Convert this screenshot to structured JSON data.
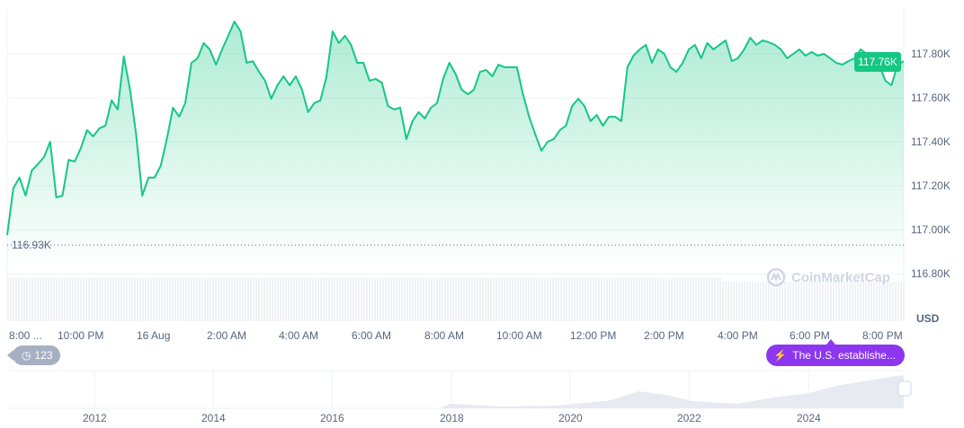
{
  "chart_data": {
    "type": "area",
    "currency": "USD",
    "current_price_label": "117.76K",
    "reference_price_label": "116.93K",
    "reference_price": 116.93,
    "y_ticks": [
      "116.80K",
      "117.00K",
      "117.20K",
      "117.40K",
      "117.60K",
      "117.80K"
    ],
    "y_tick_values": [
      116.8,
      117.0,
      117.2,
      117.4,
      117.6,
      117.8
    ],
    "ylim": [
      116.7,
      118.0
    ],
    "x_ticks": [
      "8:00 ...",
      "10:00 PM",
      "16 Aug",
      "2:00 AM",
      "4:00 AM",
      "6:00 AM",
      "8:00 AM",
      "10:00 AM",
      "12:00 PM",
      "2:00 PM",
      "4:00 PM",
      "6:00 PM",
      "8:00 PM"
    ],
    "grid": true,
    "line_color": "#16c784",
    "values_k": [
      116.975,
      117.188,
      117.237,
      117.155,
      117.269,
      117.298,
      117.331,
      117.4,
      117.147,
      117.155,
      117.318,
      117.31,
      117.371,
      117.453,
      117.424,
      117.461,
      117.473,
      117.588,
      117.547,
      117.788,
      117.637,
      117.433,
      117.155,
      117.237,
      117.237,
      117.29,
      117.412,
      117.555,
      117.514,
      117.576,
      117.759,
      117.78,
      117.849,
      117.82,
      117.751,
      117.82,
      117.882,
      117.947,
      117.902,
      117.759,
      117.767,
      117.718,
      117.678,
      117.596,
      117.657,
      117.698,
      117.657,
      117.698,
      117.637,
      117.535,
      117.576,
      117.588,
      117.698,
      117.902,
      117.849,
      117.882,
      117.841,
      117.759,
      117.759,
      117.678,
      117.686,
      117.669,
      117.563,
      117.547,
      117.555,
      117.412,
      117.494,
      117.535,
      117.506,
      117.555,
      117.576,
      117.686,
      117.759,
      117.71,
      117.637,
      117.616,
      117.637,
      117.718,
      117.727,
      117.698,
      117.751,
      117.739,
      117.739,
      117.739,
      117.616,
      117.514,
      117.433,
      117.359,
      117.4,
      117.412,
      117.453,
      117.473,
      117.563,
      117.596,
      117.563,
      117.494,
      117.522,
      117.473,
      117.514,
      117.514,
      117.494,
      117.739,
      117.792,
      117.82,
      117.841,
      117.759,
      117.82,
      117.8,
      117.739,
      117.718,
      117.759,
      117.82,
      117.841,
      117.78,
      117.849,
      117.82,
      117.841,
      117.861,
      117.767,
      117.78,
      117.82,
      117.873,
      117.841,
      117.861,
      117.853,
      117.841,
      117.82,
      117.78,
      117.8,
      117.82,
      117.792,
      117.808,
      117.792,
      117.8,
      117.78,
      117.759,
      117.751,
      117.767,
      117.78,
      117.82,
      117.8,
      117.78,
      117.751,
      117.678,
      117.657,
      117.751,
      117.767
    ]
  },
  "navigator": {
    "years": [
      "2012",
      "2014",
      "2016",
      "2018",
      "2020",
      "2022",
      "2024"
    ]
  },
  "badges": {
    "history_count": "123",
    "event_text": "The U.S. establishe..."
  },
  "watermark": "CoinMarketCap",
  "currency_label": "USD"
}
